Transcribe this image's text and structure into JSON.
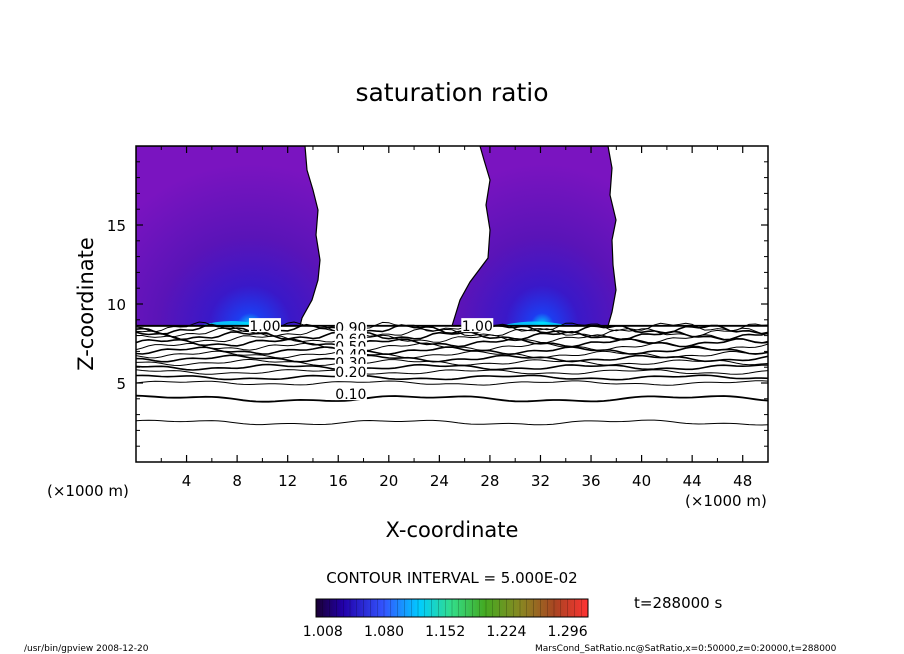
{
  "chart_data": {
    "type": "contour",
    "title": "saturation ratio",
    "xlabel": "X-coordinate",
    "ylabel": "Z-coordinate",
    "x_unit_note": "(×1000 m)",
    "x_ticks": [
      4,
      8,
      12,
      16,
      20,
      24,
      28,
      32,
      36,
      40,
      44,
      48
    ],
    "y_ticks": [
      5,
      10,
      15
    ],
    "xlim": [
      0,
      50
    ],
    "ylim": [
      0,
      20
    ],
    "contour_interval_text": "CONTOUR INTERVAL = 5.000E-02",
    "contour_labels": [
      {
        "label": "1.00",
        "x": 10.2,
        "z": 8.6
      },
      {
        "label": "1.00",
        "x": 27.0,
        "z": 8.6
      },
      {
        "label": "0.90",
        "x": 17.0,
        "z": 8.5
      },
      {
        "label": "0.60",
        "x": 17.0,
        "z": 7.8
      },
      {
        "label": "0.50",
        "x": 17.0,
        "z": 7.3
      },
      {
        "label": "0.40",
        "x": 17.0,
        "z": 6.8
      },
      {
        "label": "0.30",
        "x": 17.0,
        "z": 6.3
      },
      {
        "label": "0.20",
        "x": 17.0,
        "z": 5.7
      },
      {
        "label": "0.10",
        "x": 17.0,
        "z": 4.3
      }
    ],
    "supersaturated_regions": [
      {
        "x_range": [
          0,
          13.5
        ],
        "z_range": [
          8.6,
          20
        ]
      },
      {
        "x_range": [
          25,
          37
        ],
        "z_range": [
          8.6,
          20
        ]
      }
    ],
    "colorbar": {
      "tick_labels": [
        "1.008",
        "1.080",
        "1.152",
        "1.224",
        "1.296"
      ],
      "range": [
        1.0,
        1.32
      ],
      "colors": [
        "#1a0033",
        "#2200aa",
        "#3355ff",
        "#00ccff",
        "#33dd88",
        "#44aa22",
        "#888822",
        "#aa4422",
        "#ff3333"
      ]
    },
    "time_label": "t=288000  s"
  },
  "footer": {
    "left": "/usr/bin/gpview   2008-12-20",
    "right": "MarsCond_SatRatio.nc@SatRatio,x=0:50000,z=0:20000,t=288000"
  }
}
